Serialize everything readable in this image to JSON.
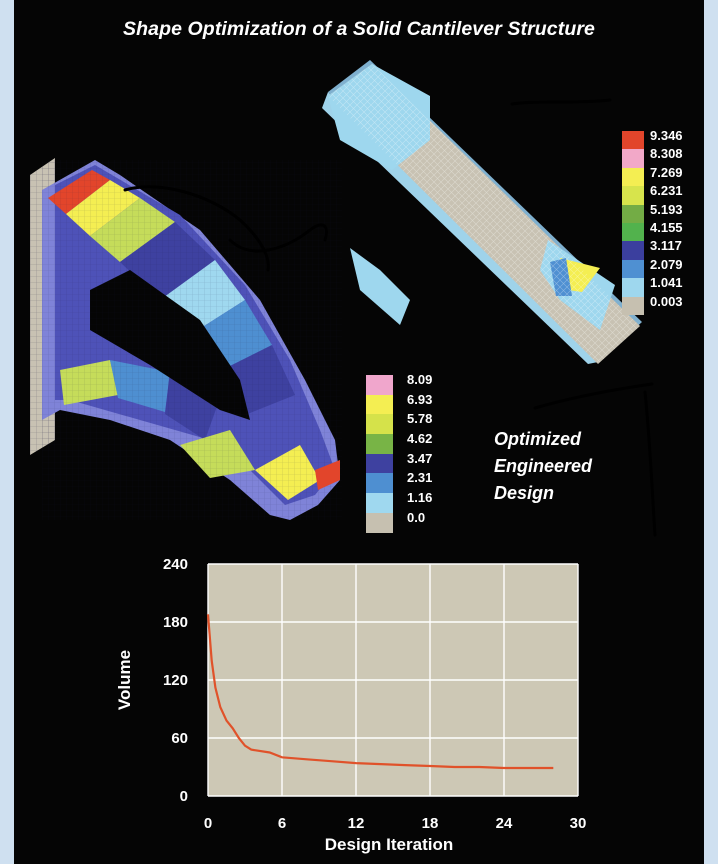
{
  "title": "Shape Optimization of a Solid Cantilever Structure",
  "caption_lines": [
    "Optimized",
    "Engineered",
    "Design"
  ],
  "legend_top": {
    "labels": [
      "9.346",
      "8.308",
      "7.269",
      "6.231",
      "5.193",
      "4.155",
      "3.117",
      "2.079",
      "1.041",
      "0.003"
    ],
    "colors": [
      "#e2452b",
      "#f2a8c8",
      "#f4ee52",
      "#d7e44c",
      "#73ac45",
      "#52b24d",
      "#3b3f9e",
      "#4f90d2",
      "#9ed7ee",
      "#c6c0b0"
    ]
  },
  "legend_bottom": {
    "labels": [
      "8.09",
      "6.93",
      "5.78",
      "4.62",
      "3.47",
      "2.31",
      "1.16",
      "0.0"
    ],
    "colors": [
      "#f0a6cc",
      "#f4ee52",
      "#d5e24a",
      "#78b446",
      "#3e41a0",
      "#4e8fd1",
      "#9fd8ef",
      "#c6c0b0"
    ]
  },
  "chart_data": {
    "type": "line",
    "title": "",
    "xlabel": "Design Iteration",
    "ylabel": "Volume",
    "xlim": [
      0,
      30
    ],
    "ylim": [
      0,
      240
    ],
    "x_ticks": [
      0,
      6,
      12,
      18,
      24,
      30
    ],
    "y_ticks": [
      0,
      60,
      120,
      180,
      240
    ],
    "grid": true,
    "series": [
      {
        "x": [
          0,
          0.3,
          0.6,
          1,
          1.5,
          2,
          2.5,
          3,
          3.5,
          4,
          5,
          6,
          7,
          8,
          10,
          12,
          14,
          16,
          18,
          20,
          22,
          24,
          26,
          28
        ],
        "y": [
          188,
          140,
          112,
          92,
          78,
          70,
          60,
          52,
          48,
          47,
          45,
          40,
          39,
          38,
          36,
          34,
          33,
          32,
          31,
          30,
          30,
          29,
          29,
          29
        ]
      }
    ],
    "line_color": "#e0522a",
    "plot_background": "#cdc8b5"
  }
}
